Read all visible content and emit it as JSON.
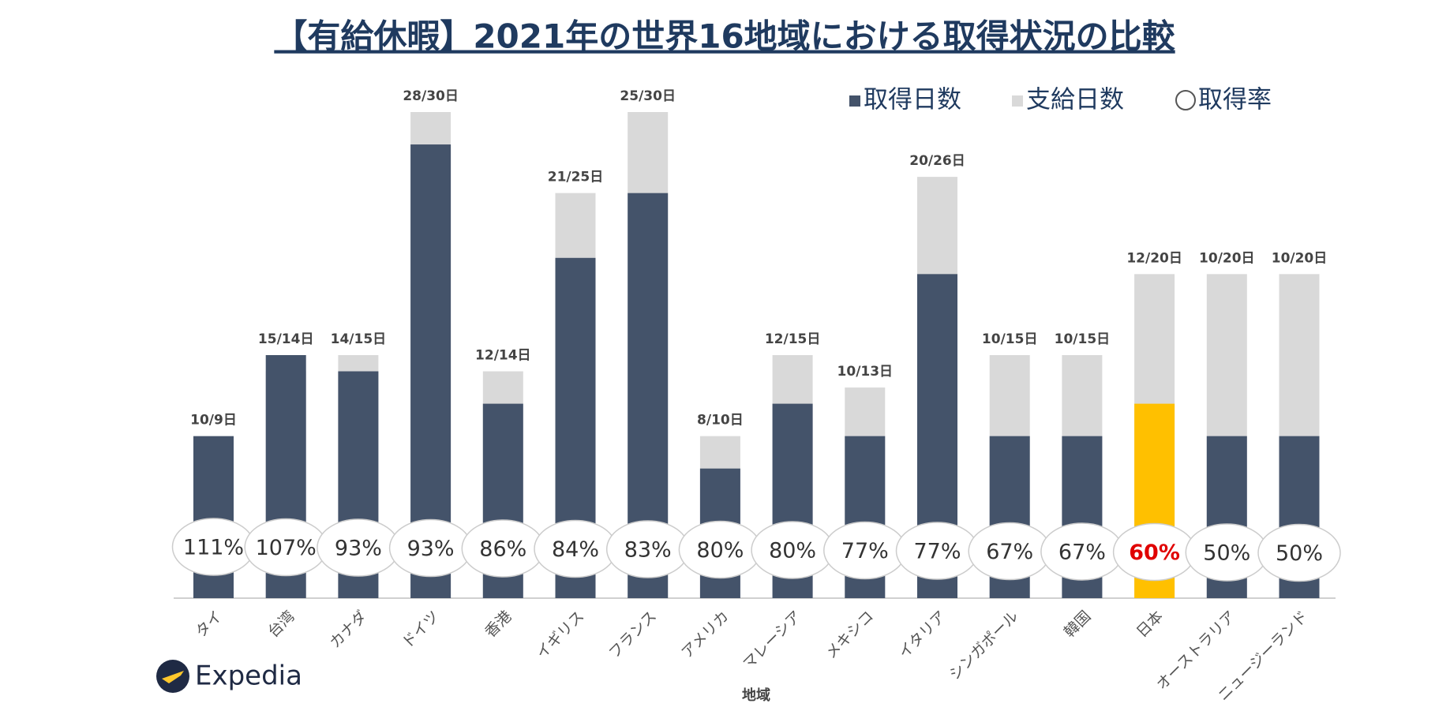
{
  "chart_data": {
    "type": "bar",
    "title": "【有給休暇】2021年の世界16地域における取得状況の比較",
    "x_label": "地域",
    "logo": "Expedia",
    "categories": [
      "タイ",
      "台湾",
      "カナダ",
      "ドイツ",
      "香港",
      "イギリス",
      "フランス",
      "アメリカ",
      "マレーシア",
      "メキシコ",
      "イタリア",
      "シンガポール",
      "韓国",
      "日本",
      "オーストラリア",
      "ニュージーランド"
    ],
    "ylim": [
      0,
      30
    ],
    "series": [
      {
        "name": "取得日数",
        "color": "#44536a",
        "colors": [
          "#44536a",
          "#44536a",
          "#44536a",
          "#44536a",
          "#44536a",
          "#44536a",
          "#44536a",
          "#44536a",
          "#44536a",
          "#44536a",
          "#44536a",
          "#44536a",
          "#44536a",
          "#ffc000",
          "#44536a",
          "#44536a"
        ],
        "values": [
          10,
          15,
          14,
          28,
          12,
          21,
          25,
          8,
          12,
          10,
          20,
          10,
          10,
          12,
          10,
          10
        ]
      },
      {
        "name": "支給日数",
        "color": "#d9d9d9",
        "values": [
          9,
          14,
          15,
          30,
          14,
          25,
          30,
          10,
          15,
          13,
          26,
          15,
          15,
          20,
          20,
          20
        ]
      },
      {
        "name": "取得率",
        "color": "#ffffff",
        "label_colors": [
          "#333333",
          "#333333",
          "#333333",
          "#333333",
          "#333333",
          "#333333",
          "#333333",
          "#333333",
          "#333333",
          "#333333",
          "#333333",
          "#333333",
          "#333333",
          "#e00000",
          "#333333",
          "#333333"
        ],
        "values": [
          111,
          107,
          93,
          93,
          86,
          84,
          83,
          80,
          80,
          77,
          77,
          67,
          67,
          60,
          50,
          50
        ],
        "value_labels": [
          "111%",
          "107%",
          "93%",
          "93%",
          "86%",
          "84%",
          "83%",
          "80%",
          "80%",
          "77%",
          "77%",
          "67%",
          "67%",
          "60%",
          "50%",
          "50%"
        ]
      }
    ],
    "bar_labels": [
      "10/9日",
      "15/14日",
      "14/15日",
      "28/30日",
      "12/14日",
      "21/25日",
      "25/30日",
      "8/10日",
      "12/15日",
      "10/13日",
      "20/26日",
      "10/15日",
      "10/15日",
      "12/20日",
      "10/20日",
      "10/20日"
    ]
  }
}
